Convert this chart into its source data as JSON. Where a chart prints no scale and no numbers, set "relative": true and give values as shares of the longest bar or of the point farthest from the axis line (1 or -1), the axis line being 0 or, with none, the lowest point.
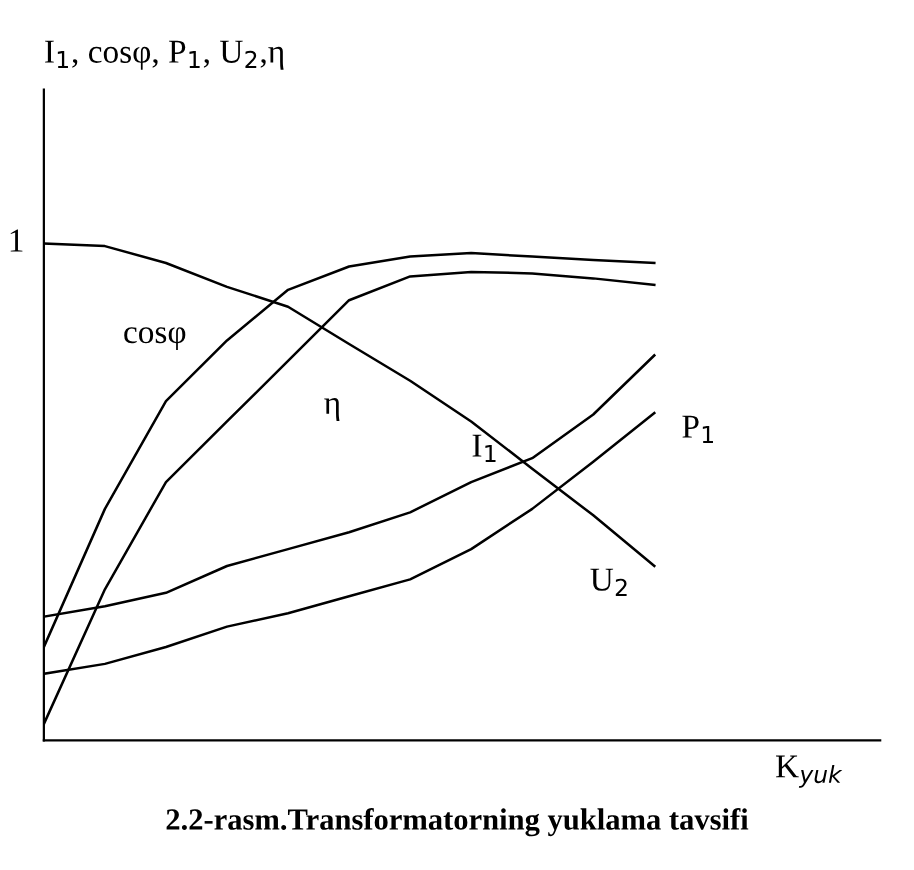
{
  "chart_data": {
    "type": "line",
    "relative": true,
    "xlabel": "K$_{yuk}$",
    "annotations": [
      "1",
      "2.2-rasm.Transformatorning yuklama tavsifi",
      "I$_{1}$, cosφ, P$_{1}$, U$_{2}$,η"
    ],
    "categories": [
      null,
      null,
      null,
      null,
      null,
      null,
      null,
      null,
      null,
      null,
      null
    ],
    "marker": "none",
    "line_style": "solid",
    "legend": false,
    "series": [
      {
        "name": "cosφ",
        "color": "#000000",
        "values": [
          0.188,
          0.466,
          0.683,
          0.805,
          0.907,
          0.954,
          0.974,
          0.981,
          0.974,
          0.967,
          0.961
        ]
      },
      {
        "name": "η",
        "color": "#000000",
        "values": [
          0.033,
          0.304,
          0.52,
          0.642,
          0.764,
          0.886,
          0.934,
          0.943,
          0.94,
          0.93,
          0.917
        ]
      },
      {
        "name": "I$_{1}$",
        "color": "#000000",
        "values": [
          0.249,
          0.27,
          0.297,
          0.351,
          0.385,
          0.419,
          0.459,
          0.52,
          0.568,
          0.656,
          0.775
        ]
      },
      {
        "name": "P$_{1}$",
        "color": "#000000",
        "values": [
          0.134,
          0.154,
          0.188,
          0.229,
          0.256,
          0.29,
          0.324,
          0.385,
          0.466,
          0.561,
          0.659
        ]
      },
      {
        "name": "U$_{2}$",
        "color": "#000000",
        "values": [
          1.0,
          0.995,
          0.961,
          0.913,
          0.873,
          0.798,
          0.724,
          0.642,
          0.547,
          0.453,
          0.351
        ]
      }
    ]
  }
}
